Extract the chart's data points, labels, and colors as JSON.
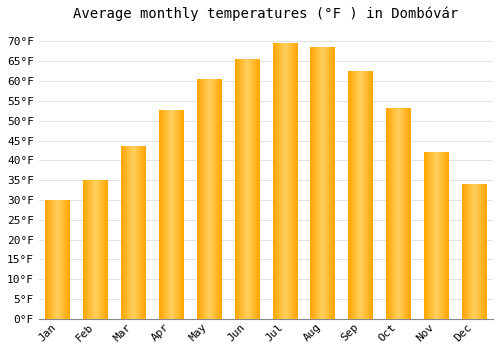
{
  "title": "Average monthly temperatures (°F ) in Dombóvár",
  "months": [
    "Jan",
    "Feb",
    "Mar",
    "Apr",
    "May",
    "Jun",
    "Jul",
    "Aug",
    "Sep",
    "Oct",
    "Nov",
    "Dec"
  ],
  "values": [
    30,
    35,
    43.5,
    52.5,
    60.5,
    65.5,
    69.5,
    68.5,
    62.5,
    53,
    42,
    34
  ],
  "bar_color": "#FFA500",
  "bar_color_light": "#FFD060",
  "ylim": [
    0,
    73
  ],
  "yticks": [
    0,
    5,
    10,
    15,
    20,
    25,
    30,
    35,
    40,
    45,
    50,
    55,
    60,
    65,
    70
  ],
  "background_color": "#FFFFFF",
  "grid_color": "#DDDDDD",
  "title_fontsize": 10,
  "tick_fontsize": 8,
  "font_family": "monospace"
}
